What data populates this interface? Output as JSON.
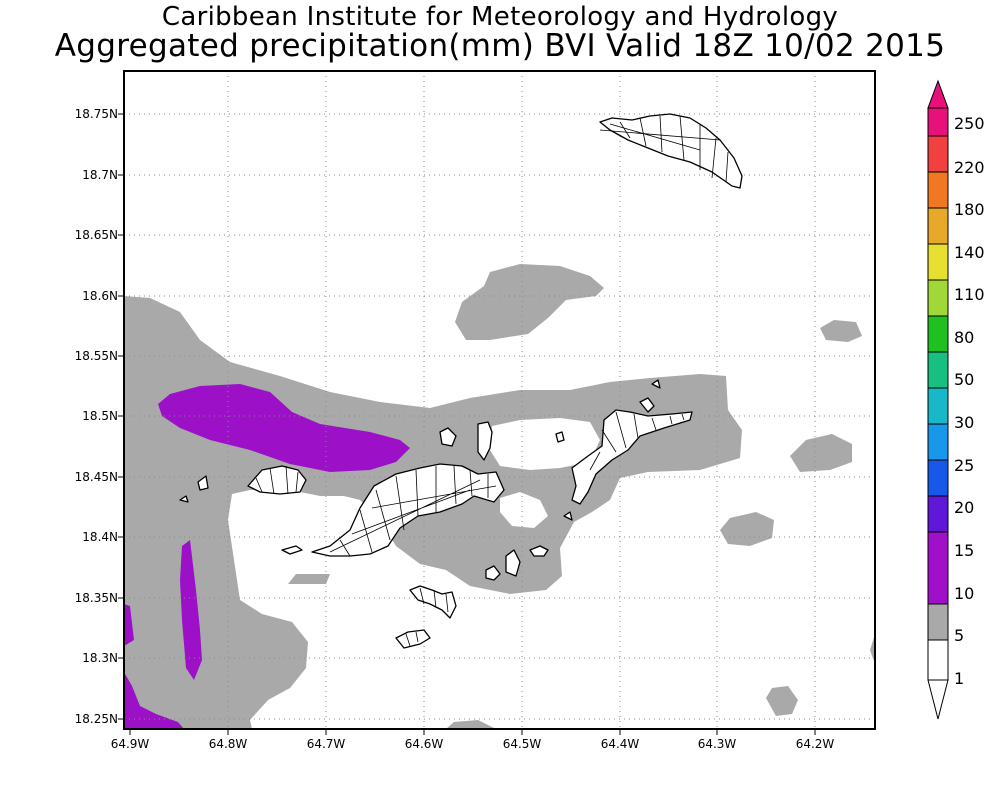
{
  "title_line1": "Caribbean Institute for Meteorology and Hydrology",
  "title_line2": "Aggregated precipitation(mm) BVI Valid 18Z 10/02 2015",
  "lat_labels": [
    "18.75N",
    "18.7N",
    "18.65N",
    "18.6N",
    "18.55N",
    "18.5N",
    "18.45N",
    "18.4N",
    "18.35N",
    "18.3N",
    "18.25N"
  ],
  "lon_labels": [
    "64.9W",
    "64.8W",
    "64.7W",
    "64.6W",
    "64.5W",
    "64.4W",
    "64.3W",
    "64.2W"
  ],
  "colorbar": {
    "labels": [
      "250",
      "220",
      "180",
      "140",
      "110",
      "80",
      "50",
      "30",
      "25",
      "20",
      "15",
      "10",
      "5",
      "1"
    ],
    "colors": [
      "#e8107a",
      "#f04040",
      "#f07820",
      "#e8a828",
      "#e8e030",
      "#a0d838",
      "#20c020",
      "#18c080",
      "#18b8c8",
      "#1898e8",
      "#1858e8",
      "#6018d8",
      "#a010c8",
      "#a9a9a9"
    ]
  },
  "fill_colors": {
    "light": "#a9a9a9",
    "heavy": "#9c10c8"
  }
}
